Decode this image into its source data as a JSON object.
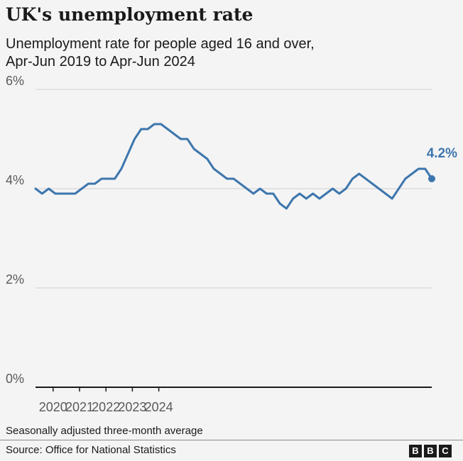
{
  "header": {
    "title": "UK's unemployment rate",
    "subtitle_line1": "Unemployment rate for people aged 16 and over,",
    "subtitle_line2": "Apr-Jun 2019 to Apr-Jun 2024"
  },
  "footer": {
    "note": "Seasonally adjusted three-month average",
    "source": "Source: Office for National Statistics",
    "logo_letters": [
      "B",
      "B",
      "C"
    ]
  },
  "colors": {
    "line": "#3d76ad",
    "grid": "#d0d0d0",
    "axis": "#1a1a1a",
    "tick_label": "#5a5a5a",
    "background": "#f4f4f4"
  },
  "chart_data": {
    "type": "line",
    "x_unit": "three-month period ending (Apr-Jun 2019 to Apr-Jun 2024)",
    "x_start": "Apr-Jun 2019",
    "x_end": "Apr-Jun 2024",
    "y_ticks": [
      0,
      2,
      4,
      6
    ],
    "y_tick_labels": [
      "0%",
      "2%",
      "4%",
      "6%"
    ],
    "ylim": [
      0,
      6
    ],
    "x_ticks": [
      2020,
      2021,
      2022,
      2023,
      2024
    ],
    "x_tick_labels": [
      "2020",
      "2021",
      "2022",
      "2023",
      "2024"
    ],
    "grid": "horizontal",
    "end_label": "4.2%",
    "series": [
      {
        "values": [
          4.0,
          3.9,
          4.0,
          3.9,
          3.9,
          3.9,
          3.9,
          4.0,
          4.1,
          4.1,
          4.2,
          4.2,
          4.2,
          4.4,
          4.7,
          5.0,
          5.2,
          5.2,
          5.3,
          5.3,
          5.2,
          5.1,
          5.0,
          5.0,
          4.8,
          4.7,
          4.6,
          4.4,
          4.3,
          4.2,
          4.2,
          4.1,
          4.0,
          3.9,
          4.0,
          3.9,
          3.9,
          3.7,
          3.6,
          3.8,
          3.9,
          3.8,
          3.9,
          3.8,
          3.9,
          4.0,
          3.9,
          4.0,
          4.2,
          4.3,
          4.2,
          4.1,
          4.0,
          3.9,
          3.8,
          4.0,
          4.2,
          4.3,
          4.4,
          4.4,
          4.2
        ]
      }
    ]
  }
}
